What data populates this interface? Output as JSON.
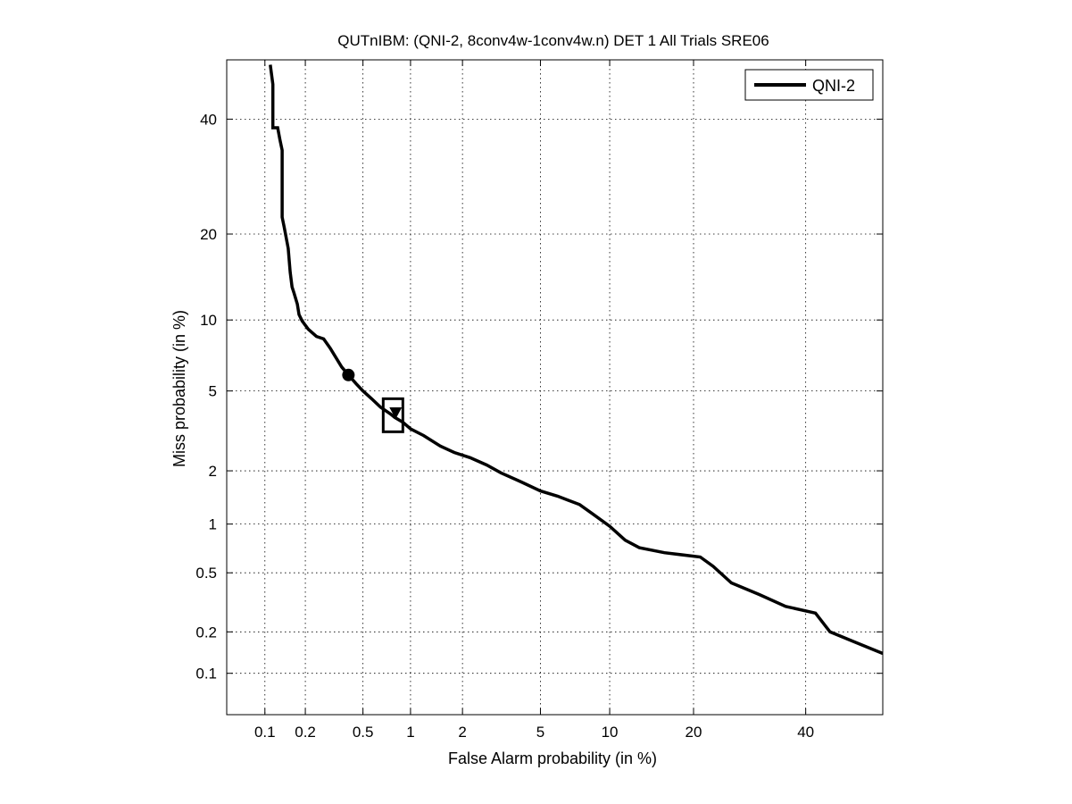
{
  "chart_data": {
    "type": "line",
    "title": "QUTnIBM: (QNI-2, 8conv4w-1conv4w.n) DET 1 All Trials SRE06",
    "xlabel": "False Alarm probability (in %)",
    "ylabel": "Miss probability (in %)",
    "x_scale": "normal-deviate (probit)",
    "y_scale": "normal-deviate (probit)",
    "xlim": [
      0.05,
      56
    ],
    "ylim": [
      0.048,
      52
    ],
    "grid": true,
    "legend_position": "top-right",
    "x_ticks": [
      {
        "value": 0.1,
        "label": "0.1"
      },
      {
        "value": 0.2,
        "label": "0.2"
      },
      {
        "value": 0.5,
        "label": "0.5"
      },
      {
        "value": 1,
        "label": "1"
      },
      {
        "value": 2,
        "label": "2"
      },
      {
        "value": 5,
        "label": "5"
      },
      {
        "value": 10,
        "label": "10"
      },
      {
        "value": 20,
        "label": "20"
      },
      {
        "value": 40,
        "label": "40"
      }
    ],
    "y_ticks": [
      {
        "value": 0.1,
        "label": "0.1"
      },
      {
        "value": 0.2,
        "label": "0.2"
      },
      {
        "value": 0.5,
        "label": "0.5"
      },
      {
        "value": 1,
        "label": "1"
      },
      {
        "value": 2,
        "label": "2"
      },
      {
        "value": 5,
        "label": "5"
      },
      {
        "value": 10,
        "label": "10"
      },
      {
        "value": 20,
        "label": "20"
      },
      {
        "value": 40,
        "label": "40"
      }
    ],
    "series": [
      {
        "name": "QNI-2",
        "color": "#000000",
        "points": [
          [
            0.11,
            51
          ],
          [
            0.115,
            47
          ],
          [
            0.115,
            38.3
          ],
          [
            0.125,
            38.3
          ],
          [
            0.13,
            36
          ],
          [
            0.135,
            34
          ],
          [
            0.135,
            22.5
          ],
          [
            0.14,
            21
          ],
          [
            0.15,
            18
          ],
          [
            0.155,
            15
          ],
          [
            0.16,
            13.3
          ],
          [
            0.165,
            12.7
          ],
          [
            0.175,
            11.5
          ],
          [
            0.18,
            10.5
          ],
          [
            0.19,
            9.9
          ],
          [
            0.21,
            9.2
          ],
          [
            0.24,
            8.6
          ],
          [
            0.27,
            8.4
          ],
          [
            0.3,
            7.7
          ],
          [
            0.33,
            7.0
          ],
          [
            0.36,
            6.4
          ],
          [
            0.4,
            5.9
          ],
          [
            0.45,
            5.4
          ],
          [
            0.5,
            5.0
          ],
          [
            0.57,
            4.6
          ],
          [
            0.65,
            4.2
          ],
          [
            0.75,
            3.9
          ],
          [
            0.8,
            3.75
          ],
          [
            0.9,
            3.55
          ],
          [
            1.0,
            3.3
          ],
          [
            1.2,
            3.05
          ],
          [
            1.5,
            2.7
          ],
          [
            1.8,
            2.5
          ],
          [
            2.2,
            2.35
          ],
          [
            2.7,
            2.15
          ],
          [
            3.2,
            1.95
          ],
          [
            4.0,
            1.75
          ],
          [
            5.0,
            1.55
          ],
          [
            6.0,
            1.45
          ],
          [
            7.5,
            1.3
          ],
          [
            8.5,
            1.15
          ],
          [
            10.0,
            0.97
          ],
          [
            11.5,
            0.8
          ],
          [
            13.0,
            0.72
          ],
          [
            16.0,
            0.67
          ],
          [
            21.0,
            0.63
          ],
          [
            23.0,
            0.55
          ],
          [
            26.0,
            0.43
          ],
          [
            31.0,
            0.36
          ],
          [
            36.0,
            0.3
          ],
          [
            42.0,
            0.27
          ],
          [
            45.0,
            0.2
          ],
          [
            50.0,
            0.17
          ],
          [
            56.0,
            0.14
          ]
        ]
      }
    ],
    "markers": [
      {
        "kind": "circle",
        "x": 0.4,
        "y": 5.9
      },
      {
        "kind": "square",
        "x": 0.78,
        "y": 3.9
      },
      {
        "kind": "triangle-down",
        "x": 0.81,
        "y": 3.95
      }
    ]
  }
}
